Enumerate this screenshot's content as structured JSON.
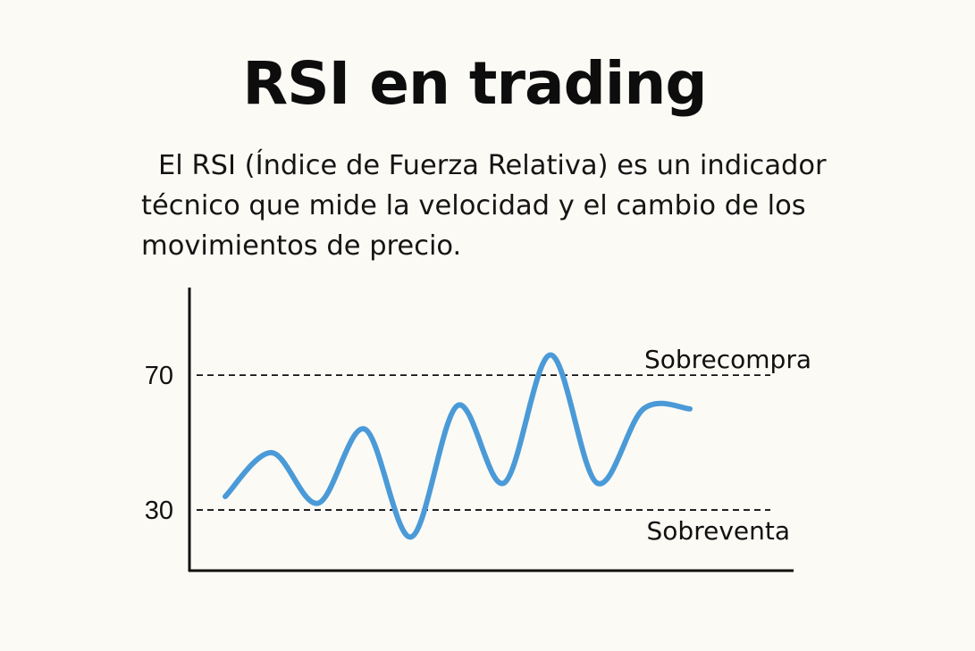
{
  "title": "RSI en trading",
  "description": {
    "lines": [
      "El RSI (Índice de Fuerza Relativa) es un indicador",
      "técnico que mide la velocidad y el cambio de los",
      "movimientos de precio."
    ]
  },
  "colors": {
    "line": "#4b9ad8",
    "axis": "#111111",
    "background": "#fcfaf5"
  },
  "chart_data": {
    "type": "line",
    "title": "",
    "xlabel": "",
    "ylabel": "",
    "ylim": [
      12,
      96
    ],
    "y_ticks": [
      30,
      70
    ],
    "grid": false,
    "legend": "none",
    "reference_lines": [
      {
        "value": 70,
        "label": "Sobrecompra",
        "style": "dashed"
      },
      {
        "value": 30,
        "label": "Sobreventa",
        "style": "dashed"
      }
    ],
    "series": [
      {
        "x": [
          0,
          1,
          2,
          3,
          4,
          5,
          6,
          7,
          8,
          9,
          10
        ],
        "values": [
          34,
          47,
          32,
          54,
          22,
          61,
          38,
          76,
          38,
          60,
          60
        ]
      }
    ]
  }
}
